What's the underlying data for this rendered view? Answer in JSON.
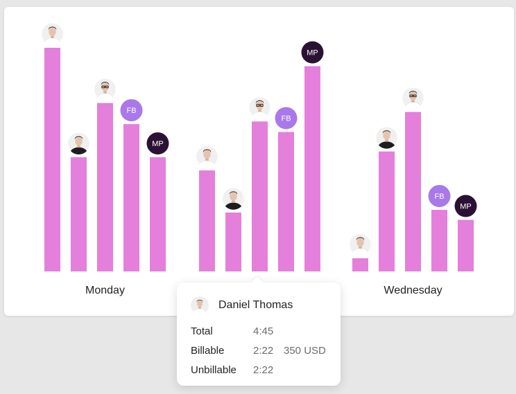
{
  "colors": {
    "bar": "#e47fdb",
    "fb_avatar": "#a979ea",
    "mp_avatar": "#2b1235"
  },
  "chart_data": {
    "type": "bar",
    "categories": [
      "Monday",
      "",
      "Wednesday"
    ],
    "series": [
      {
        "avatar": "photo-pale",
        "values": [
          4.25,
          1.92,
          0.25
        ]
      },
      {
        "avatar": "photo-dark",
        "values": [
          2.17,
          1.12,
          2.28
        ]
      },
      {
        "avatar": "photo-glasses",
        "values": [
          3.2,
          2.85,
          3.03
        ]
      },
      {
        "avatar": "FB",
        "values": [
          2.8,
          2.65,
          1.17
        ]
      },
      {
        "avatar": "MP",
        "values": [
          2.17,
          3.9,
          0.98
        ]
      }
    ],
    "grid": false,
    "legend": "none"
  },
  "tooltip": {
    "name": "Daniel Thomas",
    "avatar": "photo-pale",
    "rows": [
      {
        "label": "Total",
        "value": "4:45",
        "amount": ""
      },
      {
        "label": "Billable",
        "value": "2:22",
        "amount": "350 USD"
      },
      {
        "label": "Unbillable",
        "value": "2:22",
        "amount": ""
      }
    ]
  }
}
